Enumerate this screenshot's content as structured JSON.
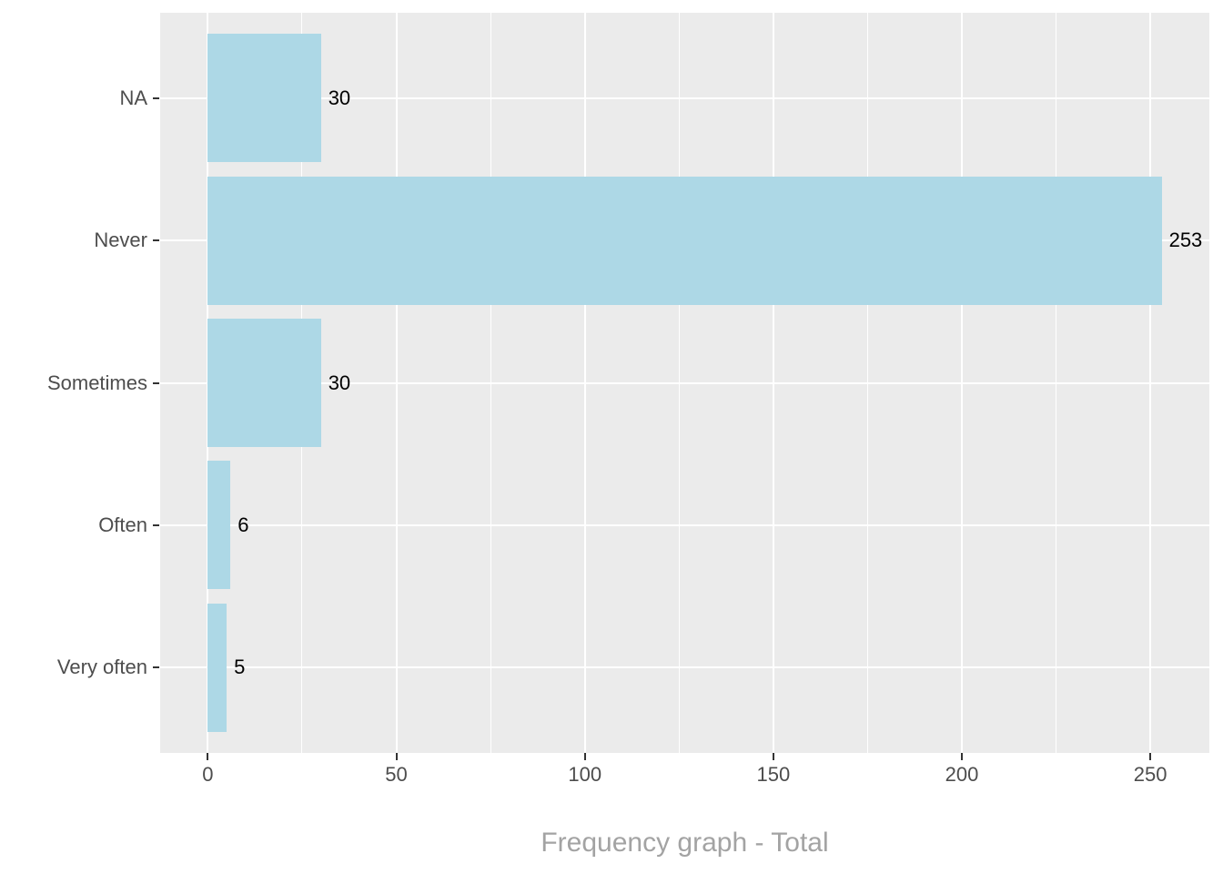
{
  "chart_data": {
    "type": "bar",
    "orientation": "horizontal",
    "categories": [
      "NA",
      "Never",
      "Sometimes",
      "Often",
      "Very often"
    ],
    "values": [
      30,
      253,
      30,
      6,
      5
    ],
    "value_labels": [
      "30",
      "253",
      "30",
      "6",
      "5"
    ],
    "xlabel": "Frequency graph - Total",
    "ylabel": "",
    "x_tick_labels": [
      "0",
      "50",
      "100",
      "150",
      "200",
      "250"
    ],
    "x_major_gridlines": [
      0,
      50,
      100,
      150,
      200,
      250
    ],
    "x_minor_gridlines": [
      25,
      75,
      125,
      175,
      225
    ],
    "xlim": [
      -12.65,
      265.65
    ],
    "grid": "white major and minor gridlines on grey panel",
    "legend": "none",
    "colors": {
      "bar_fill": "#ADD8E6",
      "panel_background": "#EBEBEB",
      "gridline": "#FFFFFF",
      "axis_text": "#4D4D4D",
      "tick_mark": "#333333",
      "value_label": "#000000",
      "axis_title": "#A3A3A3",
      "page_background": "#FFFFFF"
    }
  }
}
